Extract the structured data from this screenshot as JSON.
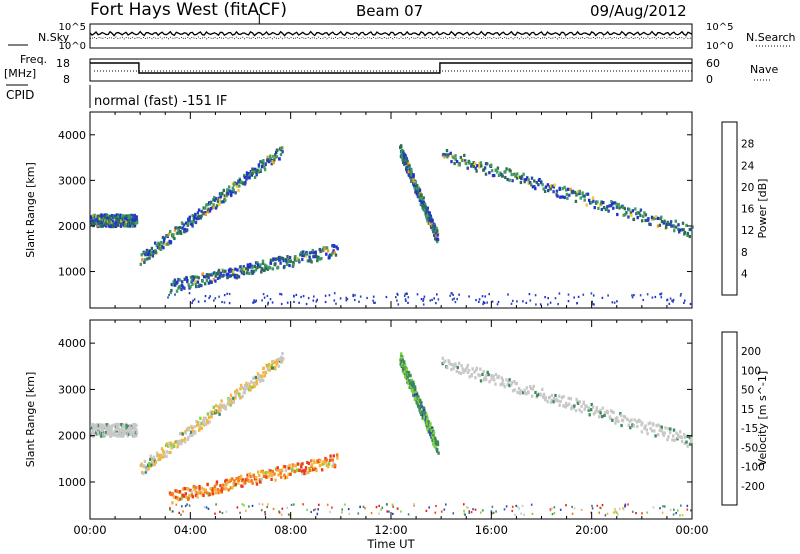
{
  "header": {
    "title": "Fort Hays West (fitACF)",
    "beam": "Beam 07",
    "date": "09/Aug/2012"
  },
  "strips": {
    "nsky_label": "N.Sky",
    "nsky_ticks": [
      "10^5",
      "10^0"
    ],
    "nsearch_label": "N.Search",
    "nsearch_ticks": [
      "10^5",
      "10^0"
    ],
    "freq_label_1": "Freq.",
    "freq_label_2": "[MHz]",
    "freq_ticks": [
      "18",
      "8"
    ],
    "nave_label": "Nave",
    "nave_ticks": [
      "60",
      "0"
    ],
    "cpid_label": "CPID",
    "cpid_text": "normal (fast) -151 IF"
  },
  "chart_data": [
    {
      "type": "heatmap",
      "name": "power",
      "xlabel": "Time UT",
      "ylabel": "Slant Range [km]",
      "x_ticks": [
        "00:00",
        "04:00",
        "08:00",
        "12:00",
        "16:00",
        "20:00",
        "00:00"
      ],
      "y_ticks": [
        1000,
        2000,
        3000,
        4000
      ],
      "xlim_hours": [
        0,
        24
      ],
      "ylim_km": [
        200,
        4500
      ],
      "colorbar": {
        "label": "Power [dB]",
        "ticks": [
          "28",
          "24",
          "20",
          "16",
          "12",
          "8",
          "4"
        ],
        "colors": [
          "#e8141a",
          "#f2541e",
          "#f59a28",
          "#f7c836",
          "#3f9b5e",
          "#2c6f4f",
          "#2a46b0",
          "#1f2fd0"
        ]
      },
      "features": [
        {
          "desc": "echo band",
          "time_start": "00:00",
          "time_end": "01:50",
          "range_km": [
            2050,
            2250
          ]
        },
        {
          "desc": "descending band",
          "time_start": "02:00",
          "time_end": "07:40",
          "range_km_start": 1300,
          "range_km_end": 3700
        },
        {
          "desc": "lower band",
          "time_start": "03:10",
          "time_end": "09:50",
          "range_km_start": 700,
          "range_km_end": 1500
        },
        {
          "desc": "steep band",
          "time_start": "12:20",
          "time_end": "13:50",
          "range_km_start": 3700,
          "range_km_end": 1750
        },
        {
          "desc": "long band",
          "time_start": "14:00",
          "time_end": "24:00",
          "range_km_start": 3600,
          "range_km_end": 1900
        }
      ]
    },
    {
      "type": "heatmap",
      "name": "velocity",
      "xlabel": "Time UT",
      "ylabel": "Slant Range [km]",
      "x_ticks": [
        "00:00",
        "04:00",
        "08:00",
        "12:00",
        "16:00",
        "20:00",
        "00:00"
      ],
      "y_ticks": [
        1000,
        2000,
        3000,
        4000
      ],
      "xlim_hours": [
        0,
        24
      ],
      "ylim_km": [
        200,
        4500
      ],
      "colorbar": {
        "label": "Velocity [m s^-1]",
        "ticks": [
          "200",
          "100",
          "50",
          "15",
          "-15",
          "-50",
          "-100",
          "-200"
        ],
        "colors": [
          "#2a3fc8",
          "#2e5fa6",
          "#3c8a5a",
          "#7fd13e",
          "#c8c8c8",
          "#f5b43a",
          "#f2781e",
          "#ee3a1a",
          "#e8141a"
        ]
      },
      "features": [
        {
          "desc": "band (near zero)",
          "time_start": "00:00",
          "time_end": "01:50",
          "range_km": [
            2050,
            2250
          ],
          "velocity": "-15 to 15"
        },
        {
          "desc": "descending band (negative)",
          "time_start": "02:00",
          "time_end": "07:40",
          "range_km_start": 1300,
          "range_km_end": 3700,
          "velocity": "-15 to -100"
        },
        {
          "desc": "lower band (negative)",
          "time_start": "03:10",
          "time_end": "09:50",
          "range_km_start": 700,
          "range_km_end": 1500,
          "velocity": "-50 to -200"
        },
        {
          "desc": "steep band (positive)",
          "time_start": "12:20",
          "time_end": "13:50",
          "range_km_start": 3700,
          "range_km_end": 1750,
          "velocity": "15 to 100"
        },
        {
          "desc": "long band (near zero)",
          "time_start": "14:00",
          "time_end": "24:00",
          "range_km_start": 3600,
          "range_km_end": 1900,
          "velocity": "-15 to 15"
        }
      ]
    }
  ]
}
